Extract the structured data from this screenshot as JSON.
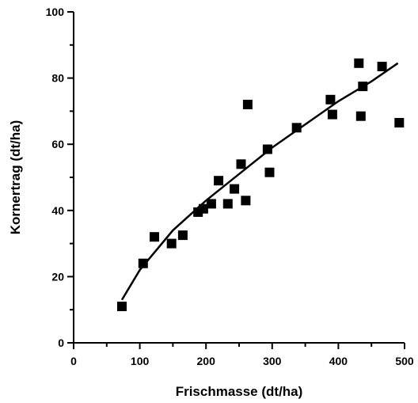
{
  "chart_data": {
    "type": "scatter",
    "xlabel": "Frischmasse (dt/ha)",
    "ylabel": "Kornertrag (dt/ha)",
    "xlim": [
      0,
      500
    ],
    "ylim": [
      0,
      100
    ],
    "x_ticks_major": [
      0,
      100,
      200,
      300,
      400,
      500
    ],
    "y_ticks_major": [
      0,
      20,
      40,
      60,
      80,
      100
    ],
    "grid": false,
    "legend": "none",
    "series": [
      {
        "marker": "square",
        "color": "#000000",
        "points": [
          {
            "x": 73,
            "y": 11
          },
          {
            "x": 105,
            "y": 24
          },
          {
            "x": 122,
            "y": 32
          },
          {
            "x": 148,
            "y": 30
          },
          {
            "x": 165,
            "y": 32.5
          },
          {
            "x": 188,
            "y": 39.5
          },
          {
            "x": 196,
            "y": 40.5
          },
          {
            "x": 208,
            "y": 42
          },
          {
            "x": 219,
            "y": 49
          },
          {
            "x": 233,
            "y": 42
          },
          {
            "x": 243,
            "y": 46.5
          },
          {
            "x": 253,
            "y": 54
          },
          {
            "x": 260,
            "y": 43
          },
          {
            "x": 263,
            "y": 72
          },
          {
            "x": 293,
            "y": 58.5
          },
          {
            "x": 296,
            "y": 51.5
          },
          {
            "x": 337,
            "y": 65
          },
          {
            "x": 388,
            "y": 73.5
          },
          {
            "x": 391,
            "y": 69
          },
          {
            "x": 431,
            "y": 84.5
          },
          {
            "x": 434,
            "y": 68.5
          },
          {
            "x": 437,
            "y": 77.5
          },
          {
            "x": 466,
            "y": 83.5
          },
          {
            "x": 492,
            "y": 66.5
          }
        ]
      }
    ],
    "fit_line": {
      "points": [
        {
          "x": 73,
          "y": 13
        },
        {
          "x": 100,
          "y": 22
        },
        {
          "x": 150,
          "y": 34
        },
        {
          "x": 200,
          "y": 43
        },
        {
          "x": 250,
          "y": 51
        },
        {
          "x": 300,
          "y": 59
        },
        {
          "x": 350,
          "y": 66
        },
        {
          "x": 400,
          "y": 73
        },
        {
          "x": 450,
          "y": 79
        },
        {
          "x": 490,
          "y": 84.5
        }
      ]
    }
  }
}
